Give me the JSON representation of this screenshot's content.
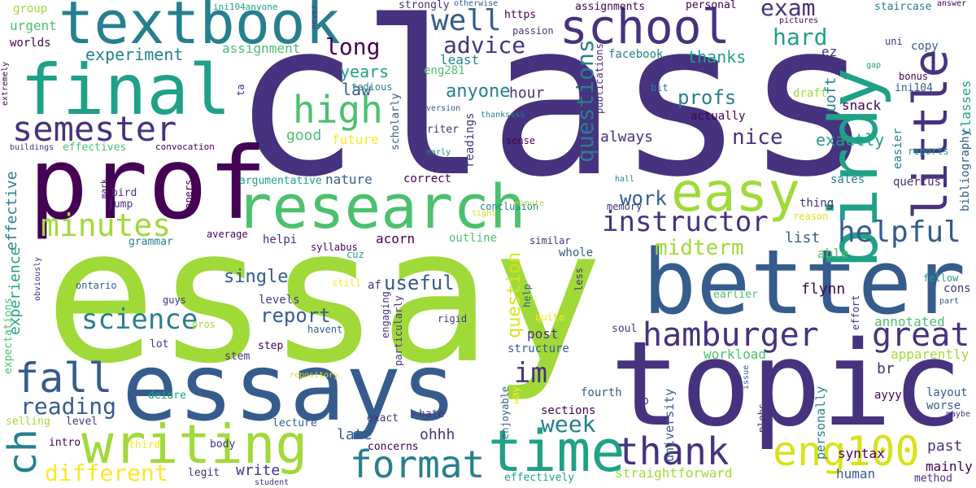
{
  "palette": {
    "dark_purple": "#440154",
    "indigo": "#46327e",
    "blue": "#365c8d",
    "teal_blue": "#277f8e",
    "teal": "#1fa187",
    "green": "#4ac16d",
    "lime": "#a0da39",
    "yellow": "#fde725"
  },
  "words": [
    {
      "text": "class"
    },
    {
      "text": "essay"
    },
    {
      "text": "essays"
    },
    {
      "text": "topic"
    },
    {
      "text": "better"
    },
    {
      "text": "research"
    },
    {
      "text": "prof"
    },
    {
      "text": "final"
    },
    {
      "text": "textbook"
    },
    {
      "text": "school"
    },
    {
      "text": "birdy"
    },
    {
      "text": "little"
    },
    {
      "text": "easy"
    },
    {
      "text": "time"
    },
    {
      "text": "writing"
    },
    {
      "text": "format"
    },
    {
      "text": "thank"
    },
    {
      "text": "eng100"
    },
    {
      "text": "hamburger"
    },
    {
      "text": "great"
    },
    {
      "text": "high"
    },
    {
      "text": "semester"
    },
    {
      "text": "minutes"
    },
    {
      "text": "fall"
    },
    {
      "text": "ch"
    },
    {
      "text": "instructor"
    },
    {
      "text": "helpful"
    },
    {
      "text": "science"
    },
    {
      "text": "well"
    },
    {
      "text": "exam"
    },
    {
      "text": "hard"
    },
    {
      "text": "advice"
    },
    {
      "text": "long"
    },
    {
      "text": "questions"
    },
    {
      "text": "midterm"
    },
    {
      "text": "work"
    },
    {
      "text": "reading"
    },
    {
      "text": "different"
    },
    {
      "text": "week"
    },
    {
      "text": "im"
    },
    {
      "text": "question"
    },
    {
      "text": "report"
    },
    {
      "text": "useful"
    },
    {
      "text": "single"
    },
    {
      "text": "experiment"
    },
    {
      "text": "years"
    },
    {
      "text": "anyone"
    },
    {
      "text": "thanks"
    },
    {
      "text": "profs"
    },
    {
      "text": "nice"
    },
    {
      "text": "exactly"
    },
    {
      "text": "uoft"
    },
    {
      "text": "classes"
    },
    {
      "text": "bibliography"
    },
    {
      "text": "snack"
    },
    {
      "text": "flynn"
    },
    {
      "text": "list"
    },
    {
      "text": "able"
    },
    {
      "text": "annotated"
    },
    {
      "text": "apparently"
    },
    {
      "text": "br"
    },
    {
      "text": "workload"
    },
    {
      "text": "past"
    },
    {
      "text": "human"
    },
    {
      "text": "mainly"
    },
    {
      "text": "syntax"
    },
    {
      "text": "straightforward"
    },
    {
      "text": "write"
    },
    {
      "text": "ohhh"
    },
    {
      "text": "late"
    },
    {
      "text": "effective"
    },
    {
      "text": "experience"
    },
    {
      "text": "expectations"
    },
    {
      "text": "law"
    },
    {
      "text": "always"
    },
    {
      "text": "good"
    },
    {
      "text": "future"
    },
    {
      "text": "hour"
    },
    {
      "text": "eng281"
    },
    {
      "text": "least"
    },
    {
      "text": "assignment"
    },
    {
      "text": "urgent"
    },
    {
      "text": "worlds"
    },
    {
      "text": "group"
    },
    {
      "text": "nature"
    },
    {
      "text": "correct"
    },
    {
      "text": "acorn"
    },
    {
      "text": "helpi"
    },
    {
      "text": "outline"
    },
    {
      "text": "whole"
    },
    {
      "text": "post"
    },
    {
      "text": "structure"
    },
    {
      "text": "sections"
    },
    {
      "text": "fourth"
    },
    {
      "text": "np"
    },
    {
      "text": "university"
    },
    {
      "text": "personally"
    },
    {
      "text": "layout"
    },
    {
      "text": "worse"
    },
    {
      "text": "ayyy"
    },
    {
      "text": "cons"
    },
    {
      "text": "fellow"
    },
    {
      "text": "quercus"
    },
    {
      "text": "sales"
    },
    {
      "text": "easier"
    },
    {
      "text": "reports"
    },
    {
      "text": "thing"
    },
    {
      "text": "reason"
    },
    {
      "text": "draft"
    },
    {
      "text": "actually"
    },
    {
      "text": "ez"
    },
    {
      "text": "copy"
    },
    {
      "text": "bonus"
    },
    {
      "text": "ini104"
    },
    {
      "text": "uni"
    },
    {
      "text": "staircase"
    },
    {
      "text": "facebook"
    },
    {
      "text": "bit"
    },
    {
      "text": "assignments"
    },
    {
      "text": "personal"
    },
    {
      "text": "https"
    },
    {
      "text": "passion"
    },
    {
      "text": "strongly"
    },
    {
      "text": "tedious"
    },
    {
      "text": "readings"
    },
    {
      "text": "scholarly"
    },
    {
      "text": "writer"
    },
    {
      "text": "sense"
    },
    {
      "text": "conclusion"
    },
    {
      "text": "argumentative"
    },
    {
      "text": "effectives"
    },
    {
      "text": "convocation"
    },
    {
      "text": "buildings"
    },
    {
      "text": "extremely"
    },
    {
      "text": "ta"
    },
    {
      "text": "ini104anyone"
    },
    {
      "text": "never"
    },
    {
      "text": "otherwise"
    },
    {
      "text": "answer"
    },
    {
      "text": "pictures"
    },
    {
      "text": "gap"
    },
    {
      "text": "cuz"
    },
    {
      "text": "version"
    },
    {
      "text": "thankssss"
    },
    {
      "text": "early"
    },
    {
      "text": "publications"
    },
    {
      "text": "uneven"
    },
    {
      "text": "memory"
    },
    {
      "text": "hall"
    },
    {
      "text": "minute"
    },
    {
      "text": "tight"
    },
    {
      "text": "jump"
    },
    {
      "text": "bird"
    },
    {
      "text": "mark"
    },
    {
      "text": "papers"
    },
    {
      "text": "grammar"
    },
    {
      "text": "average"
    },
    {
      "text": "syllabus"
    },
    {
      "text": "similar"
    },
    {
      "text": "ontario"
    },
    {
      "text": "obviously"
    },
    {
      "text": "guys"
    },
    {
      "text": "pros"
    },
    {
      "text": "lot"
    },
    {
      "text": "still"
    },
    {
      "text": "af"
    },
    {
      "text": "levels"
    },
    {
      "text": "havent"
    },
    {
      "text": "engaging"
    },
    {
      "text": "particularly"
    },
    {
      "text": "rigid"
    },
    {
      "text": "help"
    },
    {
      "text": "quite"
    },
    {
      "text": "less"
    },
    {
      "text": "earlier"
    },
    {
      "text": "soul"
    },
    {
      "text": "effort"
    },
    {
      "text": "part"
    },
    {
      "text": "step"
    },
    {
      "text": "stem"
    },
    {
      "text": "deidre"
    },
    {
      "text": "repository"
    },
    {
      "text": "enjoyable"
    },
    {
      "text": "way"
    },
    {
      "text": "issue"
    },
    {
      "text": "plebs"
    },
    {
      "text": "maybe"
    },
    {
      "text": "selling"
    },
    {
      "text": "level"
    },
    {
      "text": "lecture"
    },
    {
      "text": "exact"
    },
    {
      "text": "hate"
    },
    {
      "text": "intro"
    },
    {
      "text": "third"
    },
    {
      "text": "body"
    },
    {
      "text": "concerns"
    },
    {
      "text": "legit"
    },
    {
      "text": "student"
    },
    {
      "text": "effectively"
    },
    {
      "text": "method"
    }
  ]
}
